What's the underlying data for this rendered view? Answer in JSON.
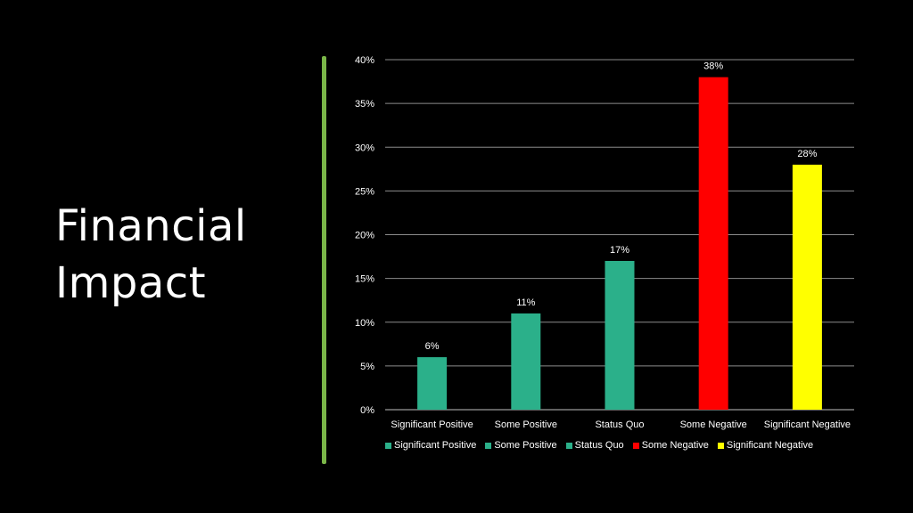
{
  "slide": {
    "title_lines": [
      "Financial",
      "Impact"
    ],
    "accent_color": "#7ab648"
  },
  "chart_data": {
    "type": "bar",
    "categories": [
      "Significant Positive",
      "Some Positive",
      "Status Quo",
      "Some Negative",
      "Significant Negative"
    ],
    "values": [
      6,
      11,
      17,
      38,
      28
    ],
    "data_labels": [
      "6%",
      "11%",
      "17%",
      "38%",
      "28%"
    ],
    "colors": [
      "#2bb08a",
      "#2bb08a",
      "#2bb08a",
      "#ff0000",
      "#ffff00"
    ],
    "ylim": [
      0,
      40
    ],
    "yticks": [
      0,
      5,
      10,
      15,
      20,
      25,
      30,
      35,
      40
    ],
    "ytick_labels": [
      "0%",
      "5%",
      "10%",
      "15%",
      "20%",
      "25%",
      "30%",
      "35%",
      "40%"
    ],
    "grid": true,
    "legend_position": "bottom",
    "legend": [
      {
        "label": "Significant Positive",
        "color": "#2bb08a"
      },
      {
        "label": "Some Positive",
        "color": "#2bb08a"
      },
      {
        "label": "Status Quo",
        "color": "#2bb08a"
      },
      {
        "label": "Some Negative",
        "color": "#ff0000"
      },
      {
        "label": "Significant Negative",
        "color": "#ffff00"
      }
    ]
  }
}
